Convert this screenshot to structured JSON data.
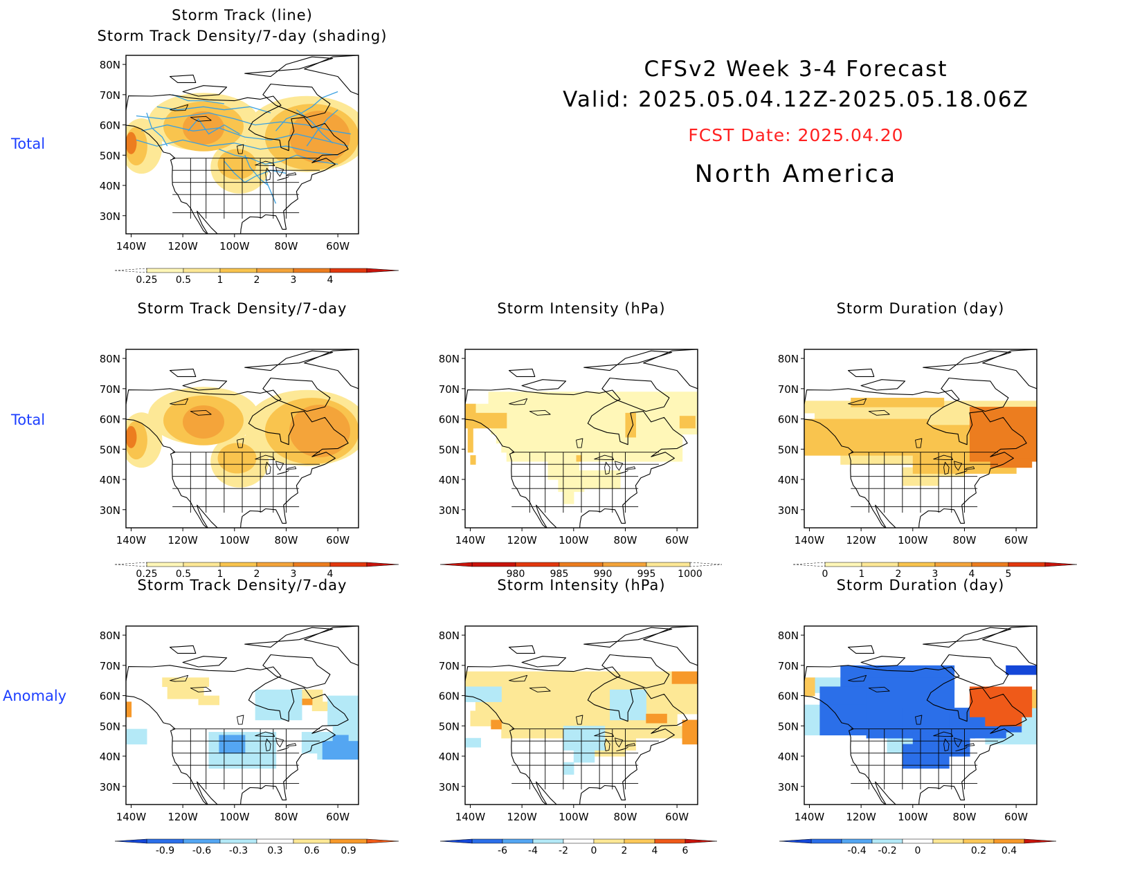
{
  "header": {
    "line1": "CFSv2 Week 3-4 Forecast",
    "line2": "Valid: 2025.05.04.12Z-2025.05.18.06Z",
    "fcst_date": "FCST Date: 2025.04.20",
    "region": "North America"
  },
  "row_labels": {
    "row1": "Total",
    "row2": "Total",
    "row3": "Anomaly"
  },
  "axes": {
    "lat_ticks": [
      "80N",
      "70N",
      "60N",
      "50N",
      "40N",
      "30N"
    ],
    "lon_ticks": [
      "140W",
      "120W",
      "100W",
      "80W",
      "60W"
    ]
  },
  "colors": {
    "total_scale": [
      "#fff7b8",
      "#fde896",
      "#f9c44e",
      "#f4a43a",
      "#ec7d1f",
      "#e2380e",
      "#c8140c"
    ],
    "intensity_scale": [
      "#c8140c",
      "#e2380e",
      "#ec7d1f",
      "#f4a43a",
      "#f9c44e",
      "#fde896",
      "#fff7b8"
    ],
    "anomaly_scale": [
      "#1447d8",
      "#2b6fe9",
      "#54a6f2",
      "#b4e9f7",
      "#ffffff",
      "#fde896",
      "#fcc95a",
      "#f7992a",
      "#ef5a19",
      "#c8140c"
    ],
    "track_line": "#3aa0e0",
    "state_lines": "#000000"
  },
  "chart_data": [
    {
      "type": "heatmap",
      "title": "Storm Track (line)",
      "subtitle": "Storm Track Density/7-day (shading)",
      "colorbar_labels": [
        "0.25",
        "0.5",
        "1",
        "2",
        "3",
        "4"
      ],
      "overlay": "storm track lines",
      "blobs": [
        {
          "lon": -112,
          "lat": 59,
          "level": 3
        },
        {
          "lon": -112,
          "lat": 59,
          "level": 2
        },
        {
          "lon": -70,
          "lat": 57,
          "level": 3
        },
        {
          "lon": -72,
          "lat": 57,
          "level": 2
        },
        {
          "lon": -138,
          "lat": 53,
          "level": 3
        },
        {
          "lon": -100,
          "lat": 47,
          "level": 2
        }
      ]
    },
    {
      "type": "heatmap",
      "title": "Storm Track Density/7-day",
      "colorbar_labels": [
        "0.25",
        "0.5",
        "1",
        "2",
        "3",
        "4"
      ],
      "blobs": [
        {
          "lon": -112,
          "lat": 59,
          "level": 3
        },
        {
          "lon": -70,
          "lat": 57,
          "level": 3
        },
        {
          "lon": -138,
          "lat": 53,
          "level": 4
        },
        {
          "lon": -100,
          "lat": 47,
          "level": 3
        }
      ]
    },
    {
      "type": "heatmap",
      "title": "Storm Intensity (hPa)",
      "colorbar_labels": [
        "980",
        "985",
        "990",
        "995",
        "1000"
      ],
      "field": "mostly 995-1000 hPa over Canada and northern US, 990-995 patches near 138W 55N and 78W 60N"
    },
    {
      "type": "heatmap",
      "title": "Storm Duration (day)",
      "colorbar_labels": [
        "0",
        "1",
        "2",
        "3",
        "4",
        "5"
      ],
      "field": "2-3 days across Canada, 3-4 days over eastern Canada (Labrador/Quebec)"
    },
    {
      "type": "heatmap",
      "title": "Storm Track Density/7-day",
      "colorbar_labels": [
        "-0.9",
        "-0.6",
        "-0.3",
        "0.3",
        "0.6",
        "0.9"
      ],
      "field": "positive 0.3-0.6 over northwestern Canada, negative -0.3 to -0.6 over central US and off the east coast"
    },
    {
      "type": "heatmap",
      "title": "Storm Intensity (hPa)",
      "colorbar_labels": [
        "-6",
        "-4",
        "-2",
        "0",
        "2",
        "4",
        "6"
      ],
      "field": "positive 0-2 hPa over most of Canada, 2-4 hPa over eastern Canada and Labrador Sea"
    },
    {
      "type": "heatmap",
      "title": "Storm Duration (day)",
      "colorbar_labels": [
        "-0.4",
        "-0.2",
        "0",
        "0.2",
        "0.4"
      ],
      "field": "negative -0.2 to -0.4 over central Canada and US Midwest, positive 0.2-0.4 over Labrador/Quebec"
    }
  ]
}
